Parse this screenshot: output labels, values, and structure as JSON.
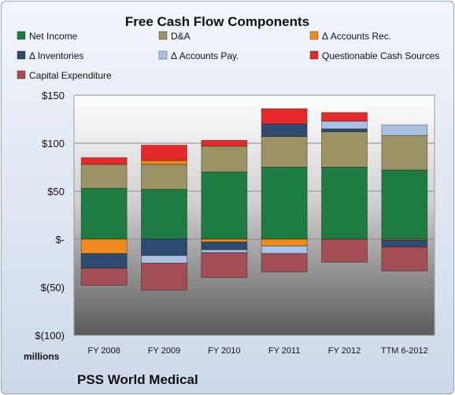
{
  "chart_data": {
    "type": "bar",
    "stacked": true,
    "title": "Free Cash Flow Components",
    "categories": [
      "FY 2008",
      "FY 2009",
      "FY 2010",
      "FY 2011",
      "FY 2012",
      "TTM 6-2012"
    ],
    "ylim": [
      -100,
      150
    ],
    "yticks": [
      150,
      100,
      50,
      0,
      -50,
      -100
    ],
    "ytick_labels": [
      "$150",
      "$100",
      "$50",
      "$-",
      "$(50)",
      "$(100)"
    ],
    "y_unit_label": "millions",
    "footer": "PSS World Medical",
    "legend_position": "top",
    "series": [
      {
        "name": "Net Income",
        "color": "#1e7c43",
        "values": [
          53,
          52,
          70,
          75,
          75,
          72
        ]
      },
      {
        "name": "D&A",
        "color": "#9b9366",
        "values": [
          25,
          26,
          27,
          32,
          37,
          36
        ]
      },
      {
        "name": "Δ Accounts Rec.",
        "color": "#ef8a1e",
        "values": [
          -15,
          4,
          -3,
          -7,
          0,
          -1
        ]
      },
      {
        "name": "Δ Inventories",
        "color": "#2d4a70",
        "values": [
          -15,
          -17,
          -8,
          13,
          3,
          -7
        ]
      },
      {
        "name": "Δ Accounts Pay.",
        "color": "#a9c1e3",
        "values": [
          0,
          -8,
          -3,
          -8,
          8,
          11
        ]
      },
      {
        "name": "Questionable Cash Sources",
        "color": "#e42a2a",
        "values": [
          7,
          16,
          6,
          16,
          9,
          0
        ]
      },
      {
        "name": "Capital Expenditure",
        "color": "#a34d55",
        "values": [
          -18,
          -28,
          -26,
          -19,
          -24,
          -25
        ]
      }
    ]
  }
}
